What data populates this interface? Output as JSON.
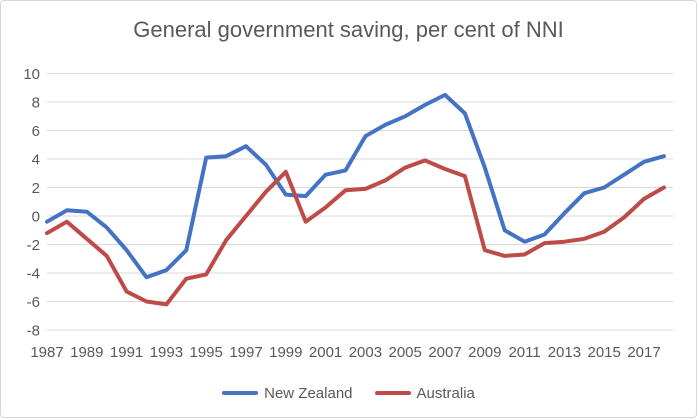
{
  "chart_data": {
    "type": "line",
    "title": "General government saving, per cent of NNI",
    "x": [
      1987,
      1988,
      1989,
      1990,
      1991,
      1992,
      1993,
      1994,
      1995,
      1996,
      1997,
      1998,
      1999,
      2000,
      2001,
      2002,
      2003,
      2004,
      2005,
      2006,
      2007,
      2008,
      2009,
      2010,
      2011,
      2012,
      2013,
      2014,
      2015,
      2016,
      2017,
      2018
    ],
    "x_tick_labels": [
      "1987",
      "1989",
      "1991",
      "1993",
      "1995",
      "1997",
      "1999",
      "2001",
      "2003",
      "2005",
      "2007",
      "2009",
      "2011",
      "2013",
      "2015",
      "2017"
    ],
    "y_tick_labels": [
      "10",
      "8",
      "6",
      "4",
      "2",
      "0",
      "-2",
      "-4",
      "-6",
      "-8"
    ],
    "ylim": [
      -8,
      10
    ],
    "ytick_step": 2,
    "grid": true,
    "legend_position": "bottom",
    "series": [
      {
        "name": "New Zealand",
        "color": "#4472C4",
        "values": [
          -0.4,
          0.4,
          0.3,
          -0.8,
          -2.4,
          -4.3,
          -3.8,
          -2.4,
          4.1,
          4.2,
          4.9,
          3.6,
          1.5,
          1.4,
          2.9,
          3.2,
          5.6,
          6.4,
          7.0,
          7.8,
          8.5,
          7.2,
          3.4,
          -1.0,
          -1.8,
          -1.3,
          0.2,
          1.6,
          2.0,
          2.9,
          3.8,
          4.2
        ]
      },
      {
        "name": "Australia",
        "color": "#BE4B48",
        "values": [
          -1.2,
          -0.4,
          -1.6,
          -2.8,
          -5.3,
          -6.0,
          -6.2,
          -4.4,
          -4.1,
          -1.7,
          0.0,
          1.7,
          3.1,
          -0.4,
          0.6,
          1.8,
          1.9,
          2.5,
          3.4,
          3.9,
          3.3,
          2.8,
          -2.4,
          -2.8,
          -2.7,
          -1.9,
          -1.8,
          -1.6,
          -1.1,
          -0.1,
          1.2,
          2.0
        ]
      }
    ]
  }
}
